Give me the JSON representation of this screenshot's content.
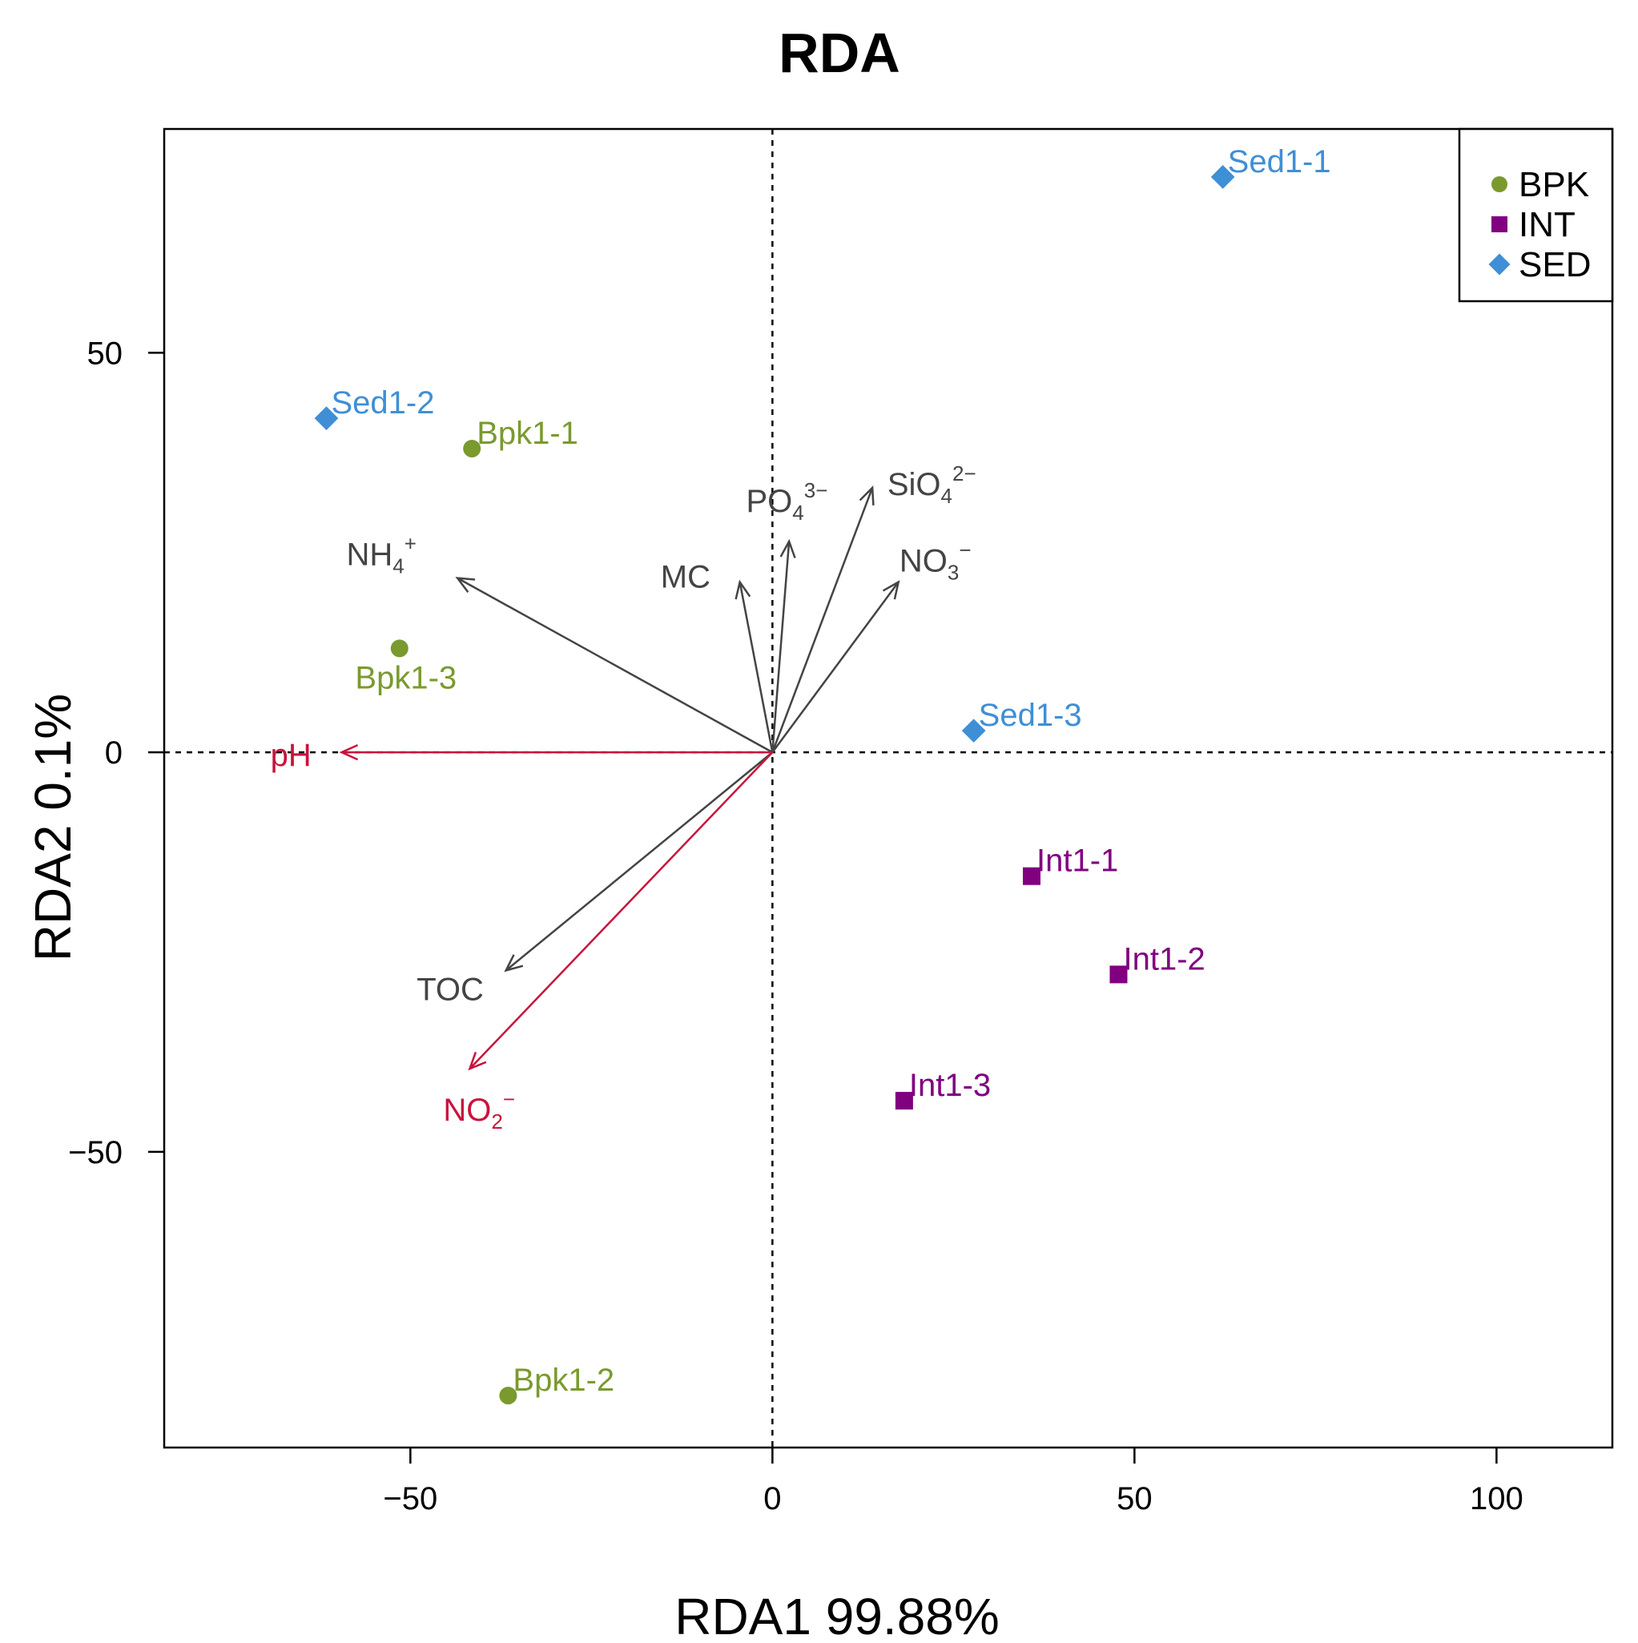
{
  "chart_data": {
    "type": "scatter",
    "title": "RDA",
    "xlabel": "RDA1  99.88%",
    "ylabel": "RDA2  0.1%",
    "xlim": [
      -84,
      116
    ],
    "ylim": [
      -87,
      78
    ],
    "x_ticks": [
      -50,
      0,
      50,
      100
    ],
    "y_ticks": [
      -50,
      0,
      50
    ],
    "x_tick_labels": [
      "−50",
      "0",
      "50",
      "100"
    ],
    "y_tick_labels": [
      "−50",
      "0",
      "50"
    ],
    "reference_lines": {
      "x": 0,
      "y": 0,
      "style": "dashed"
    },
    "colors": {
      "BPK": "#7A9A2E",
      "INT": "#800080",
      "SED": "#3F8FD6",
      "arrow": "#444444",
      "arrow_highlight": "#C8143C"
    },
    "legend": {
      "position": "top-right",
      "entries": [
        {
          "label": "BPK",
          "marker": "circle",
          "color": "#7A9A2E"
        },
        {
          "label": "INT",
          "marker": "square",
          "color": "#800080"
        },
        {
          "label": "SED",
          "marker": "diamond",
          "color": "#3F8FD6"
        }
      ]
    },
    "series": [
      {
        "name": "BPK",
        "marker": "circle",
        "color": "#7A9A2E",
        "points": [
          {
            "label": "Bpk1-1",
            "x": -41.5,
            "y": 38.0,
            "label_pos": "right"
          },
          {
            "label": "Bpk1-2",
            "x": -36.5,
            "y": -80.5,
            "label_pos": "right"
          },
          {
            "label": "Bpk1-3",
            "x": -51.5,
            "y": 13.0,
            "label_pos": "below"
          }
        ]
      },
      {
        "name": "INT",
        "marker": "square",
        "color": "#800080",
        "points": [
          {
            "label": "Int1-1",
            "x": 35.8,
            "y": -15.5,
            "label_pos": "right"
          },
          {
            "label": "Int1-2",
            "x": 47.8,
            "y": -27.8,
            "label_pos": "right"
          },
          {
            "label": "Int1-3",
            "x": 18.2,
            "y": -43.6,
            "label_pos": "right"
          }
        ]
      },
      {
        "name": "SED",
        "marker": "diamond",
        "color": "#3F8FD6",
        "points": [
          {
            "label": "Sed1-1",
            "x": 62.2,
            "y": 72.0,
            "label_pos": "right"
          },
          {
            "label": "Sed1-2",
            "x": -61.6,
            "y": 41.8,
            "label_pos": "right"
          },
          {
            "label": "Sed1-3",
            "x": 27.8,
            "y": 2.7,
            "label_pos": "right"
          }
        ]
      }
    ],
    "arrows": [
      {
        "name": "NH4+",
        "base": "NH",
        "sub": "4",
        "sup": "+",
        "x": -43.5,
        "y": 21.8,
        "label_x": -54,
        "label_y": 24.8,
        "highlight": false
      },
      {
        "name": "MC",
        "base": "MC",
        "sub": "",
        "sup": "",
        "x": -4.5,
        "y": 21.3,
        "label_x": -12,
        "label_y": 22.0,
        "highlight": false
      },
      {
        "name": "PO43-",
        "base": "PO",
        "sub": "4",
        "sup": "3−",
        "x": 2.3,
        "y": 26.4,
        "label_x": 2.0,
        "label_y": 31.5,
        "highlight": false
      },
      {
        "name": "SiO42-",
        "base": "SiO",
        "sub": "4",
        "sup": "2−",
        "x": 13.8,
        "y": 33.1,
        "label_x": 22.0,
        "label_y": 33.6,
        "highlight": false
      },
      {
        "name": "NO3-",
        "base": "NO",
        "sub": "3",
        "sup": "−",
        "x": 17.4,
        "y": 21.3,
        "label_x": 22.5,
        "label_y": 24.0,
        "highlight": false
      },
      {
        "name": "TOC",
        "base": "TOC",
        "sub": "",
        "sup": "",
        "x": -36.8,
        "y": -27.3,
        "label_x": -44.5,
        "label_y": -29.6,
        "highlight": false
      },
      {
        "name": "pH",
        "base": "pH",
        "sub": "",
        "sup": "",
        "x": -59.5,
        "y": 0.0,
        "label_x": -66.5,
        "label_y": -0.3,
        "highlight": true
      },
      {
        "name": "NO2-",
        "base": "NO",
        "sub": "2",
        "sup": "−",
        "x": -41.8,
        "y": -39.6,
        "label_x": -40.5,
        "label_y": -44.7,
        "highlight": true
      }
    ]
  }
}
